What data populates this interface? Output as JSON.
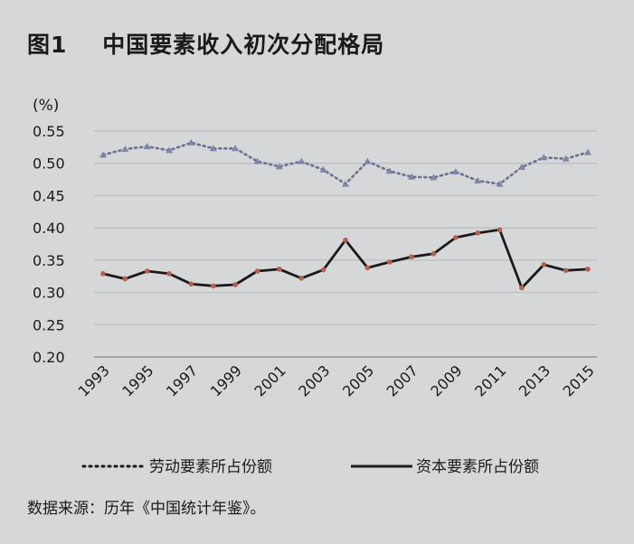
{
  "title": "图1    中国要素收入初次分配格局",
  "source": "数据来源：历年《中国统计年鉴》。",
  "chart_data": {
    "type": "line",
    "title": "中国要素收入初次分配格局",
    "ylabel": "(%)",
    "ylim": [
      0.2,
      0.55
    ],
    "yticks": [
      "0.55",
      "0.50",
      "0.45",
      "0.40",
      "0.35",
      "0.30",
      "0.25",
      "0.20"
    ],
    "ytick_values": [
      0.55,
      0.5,
      0.45,
      0.4,
      0.35,
      0.3,
      0.25,
      0.2
    ],
    "xtick_labels": [
      "1993",
      "1995",
      "1997",
      "1999",
      "2001",
      "2003",
      "2005",
      "2007",
      "2009",
      "2011",
      "2013",
      "2015"
    ],
    "x": [
      1993,
      1994,
      1995,
      1996,
      1997,
      1998,
      1999,
      2000,
      2001,
      2002,
      2003,
      2004,
      2005,
      2006,
      2007,
      2008,
      2009,
      2010,
      2011,
      2012,
      2013,
      2014,
      2015
    ],
    "grid": true,
    "legend_position": "bottom",
    "series": [
      {
        "name": "劳动要素所占份额",
        "style": "dotted",
        "color": "#6a7290",
        "values": [
          0.513,
          0.522,
          0.526,
          0.52,
          0.532,
          0.523,
          0.523,
          0.503,
          0.495,
          0.503,
          0.49,
          0.468,
          0.503,
          0.488,
          0.479,
          0.478,
          0.487,
          0.473,
          0.468,
          0.494,
          0.509,
          0.507,
          0.517
        ]
      },
      {
        "name": "资本要素所占份额",
        "style": "solid",
        "color": "#1a1a1a",
        "values": [
          0.329,
          0.321,
          0.333,
          0.329,
          0.313,
          0.31,
          0.312,
          0.333,
          0.336,
          0.322,
          0.335,
          0.381,
          0.338,
          0.347,
          0.355,
          0.36,
          0.385,
          0.392,
          0.397,
          0.307,
          0.343,
          0.334,
          0.336
        ]
      }
    ]
  }
}
